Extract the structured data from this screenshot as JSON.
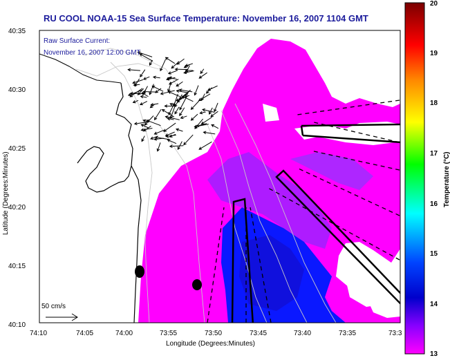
{
  "chart_data": {
    "type": "heatmap",
    "title": "RU COOL  NOAA-15  Sea Surface Temperature:  November 16, 2007 1104 GMT",
    "annotation": [
      "Raw Surface Current:",
      "November 16, 2007 12:00 GMT"
    ],
    "xlabel": "Longitude (Degrees:Minutes)",
    "ylabel": "Latitude (Degrees:Minutes)",
    "x_ticks": [
      "74:10",
      "74:05",
      "74:00",
      "73:55",
      "73:50",
      "73:45",
      "73:40",
      "73:35",
      "73:3"
    ],
    "y_ticks": [
      "40:35",
      "40:30",
      "40:25",
      "40:20",
      "40:15",
      "40:10"
    ],
    "scale_label": "50 cm/s",
    "colorbar": {
      "label": "Temperature (°C)",
      "range": [
        13,
        20
      ],
      "ticks": [
        "20",
        "19",
        "18",
        "17",
        "16",
        "15",
        "14",
        "13"
      ],
      "colors": [
        "#7a0000",
        "#ff0000",
        "#ff8800",
        "#ffff00",
        "#00ff00",
        "#00ffff",
        "#0044ff",
        "#0000cc",
        "#ff00ff"
      ]
    },
    "grid": false,
    "legend": "right"
  }
}
